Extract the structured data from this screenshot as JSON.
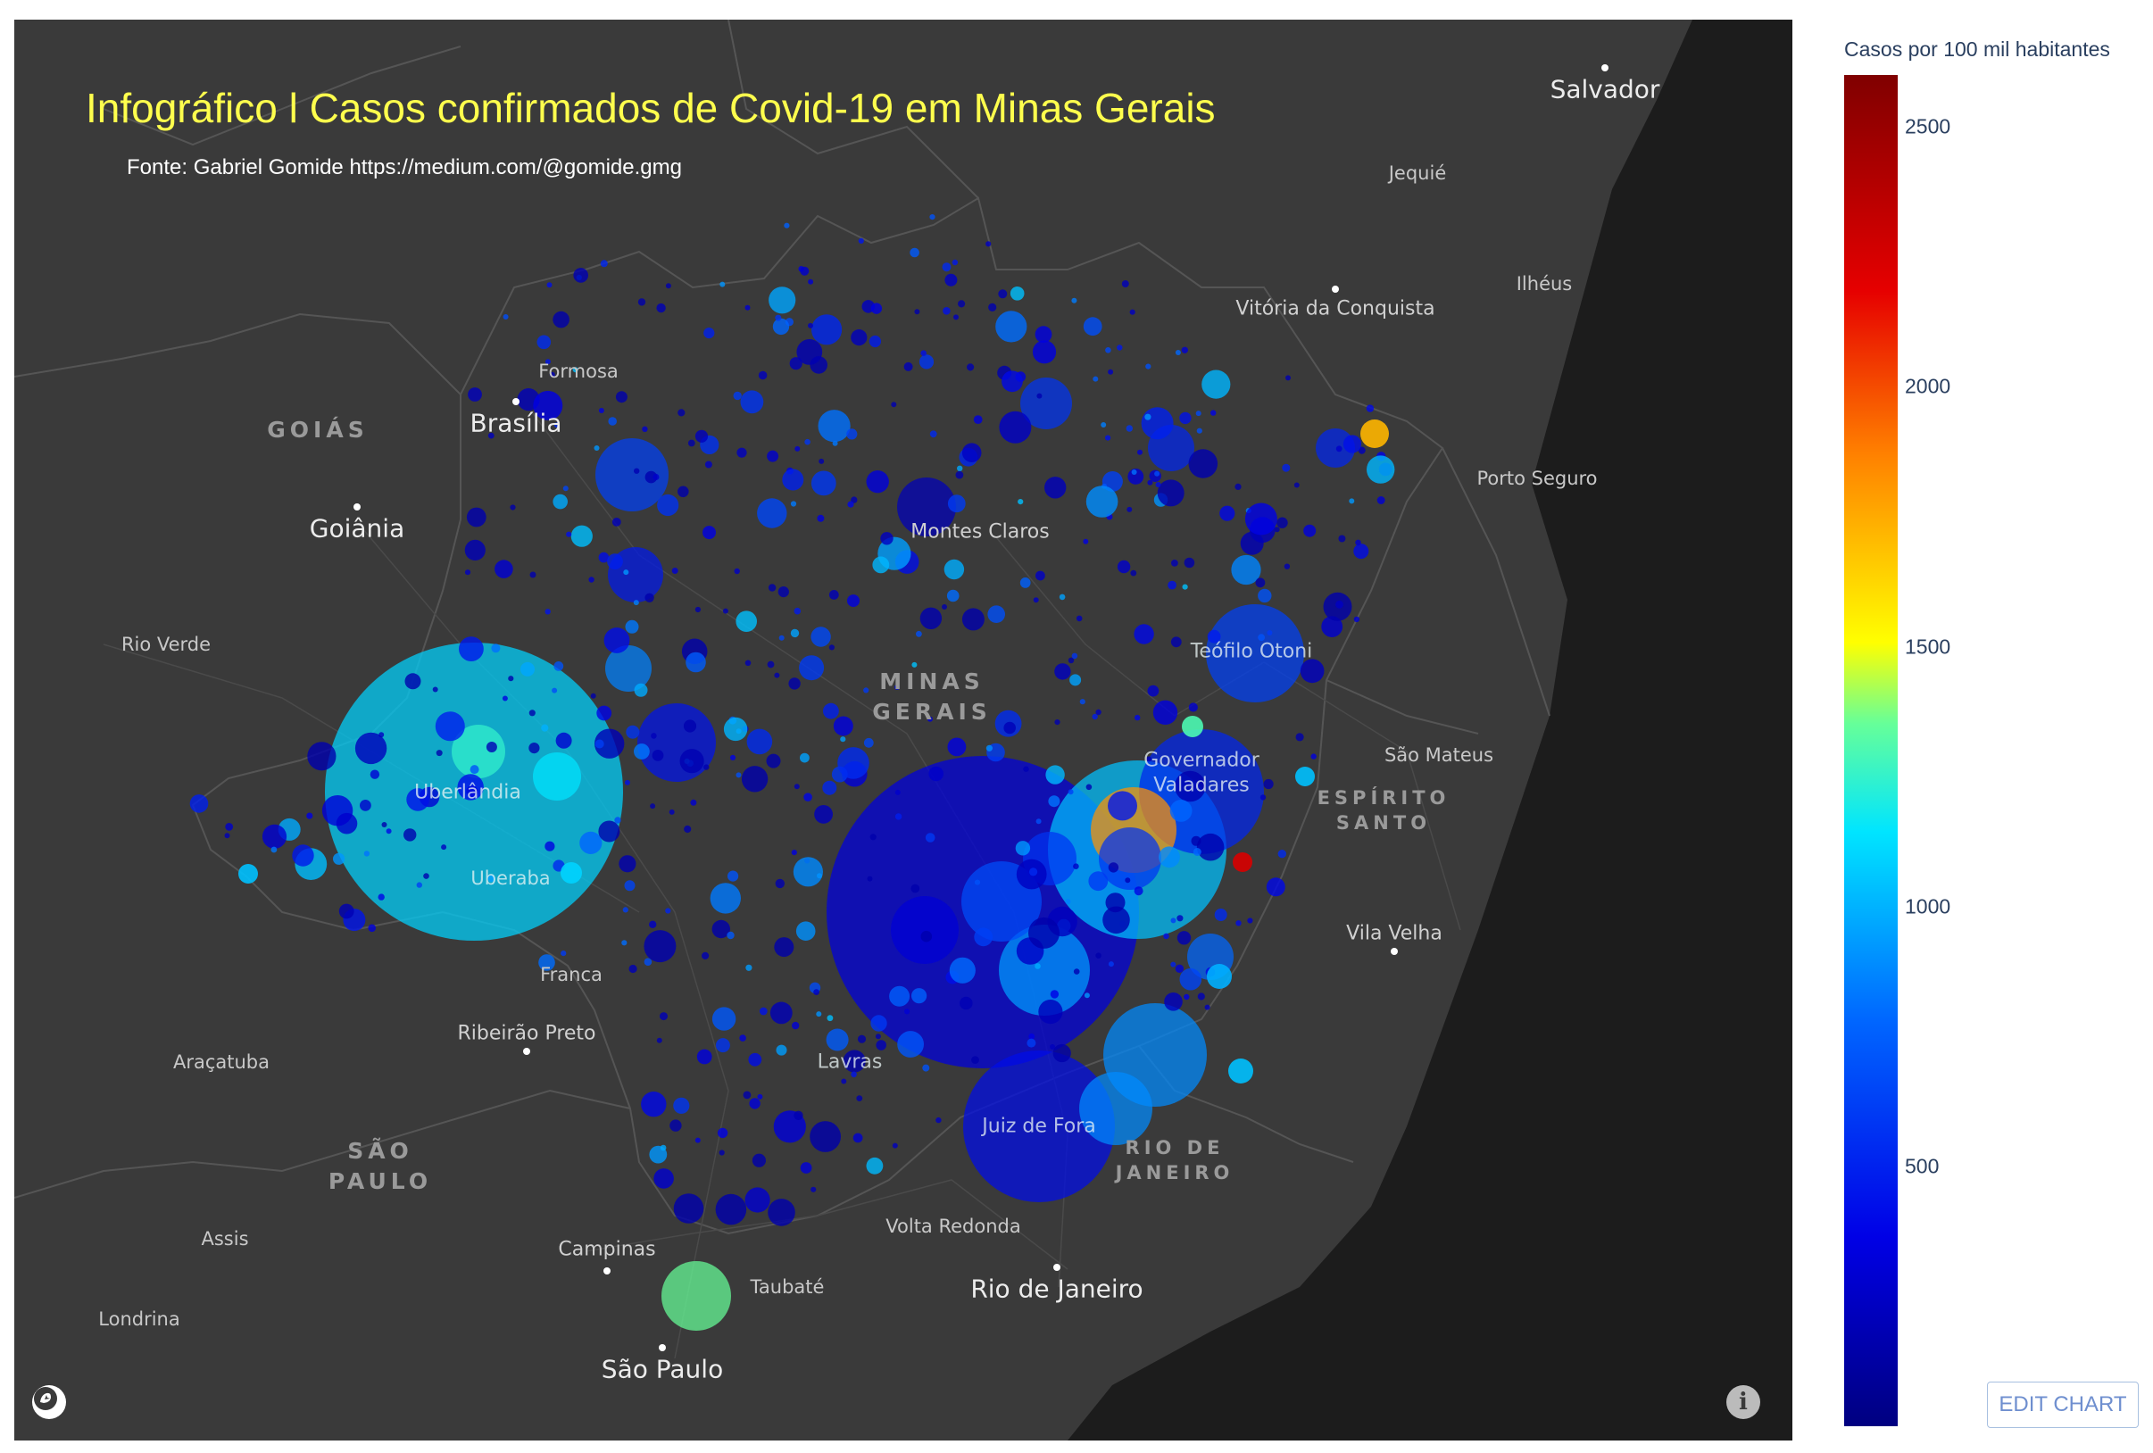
{
  "title": "Infográfico l Casos confirmados de Covid-19 em Minas Gerais",
  "source": "Fonte: Gabriel Gomide https://medium.com/@gomide.gmg",
  "colorbar": {
    "title": "Casos por 100 mil habitantes",
    "ticks": [
      "2500",
      "2000",
      "1500",
      "1000",
      "500"
    ],
    "tick_values": [
      2500,
      2000,
      1500,
      1000,
      500
    ],
    "range": [
      0,
      2600
    ],
    "colorscale": "Jet"
  },
  "edit_button": "EDIT CHART",
  "cities": {
    "salvador": "Salvador",
    "jequie": "Jequié",
    "ilheus": "Ilhéus",
    "vitoria_conquista": "Vitória da Conquista",
    "porto_seguro": "Porto Seguro",
    "formosa": "Formosa",
    "brasilia": "Brasília",
    "goiania": "Goiânia",
    "rio_verde": "Rio Verde",
    "montes_claros": "Montes Claros",
    "teofilo_otoni": "Teófilo Otoni",
    "governador_valadares_1": "Governador",
    "governador_valadares_2": "Valadares",
    "sao_mateus": "São Mateus",
    "vila_velha": "Vila Velha",
    "uberlandia": "Uberlândia",
    "uberaba": "Uberaba",
    "franca": "Franca",
    "ribeirao_preto": "Ribeirão Preto",
    "aracatuba": "Araçatuba",
    "lavras": "Lavras",
    "juiz_de_fora": "Juiz de Fora",
    "volta_redonda": "Volta Redonda",
    "rio_de_janeiro": "Rio de Janeiro",
    "assis": "Assis",
    "campinas": "Campinas",
    "taubate": "Taubaté",
    "londrina": "Londrina",
    "sao_paulo": "São Paulo"
  },
  "states": {
    "goias": "GOIÁS",
    "minas_1": "MINAS",
    "minas_2": "GERAIS",
    "espirito_1": "ESPÍRITO",
    "espirito_2": "SANTO",
    "sao_paulo_1": "SÃO",
    "sao_paulo_2": "PAULO",
    "rio_1": "RIO DE",
    "rio_2": "JANEIRO"
  },
  "map_colors": {
    "land": "#3a3a3a",
    "sea": "#1e1e1e",
    "border": "#555555"
  },
  "icons": {
    "logo": "mapbox-logo-icon",
    "info": "info-icon"
  }
}
